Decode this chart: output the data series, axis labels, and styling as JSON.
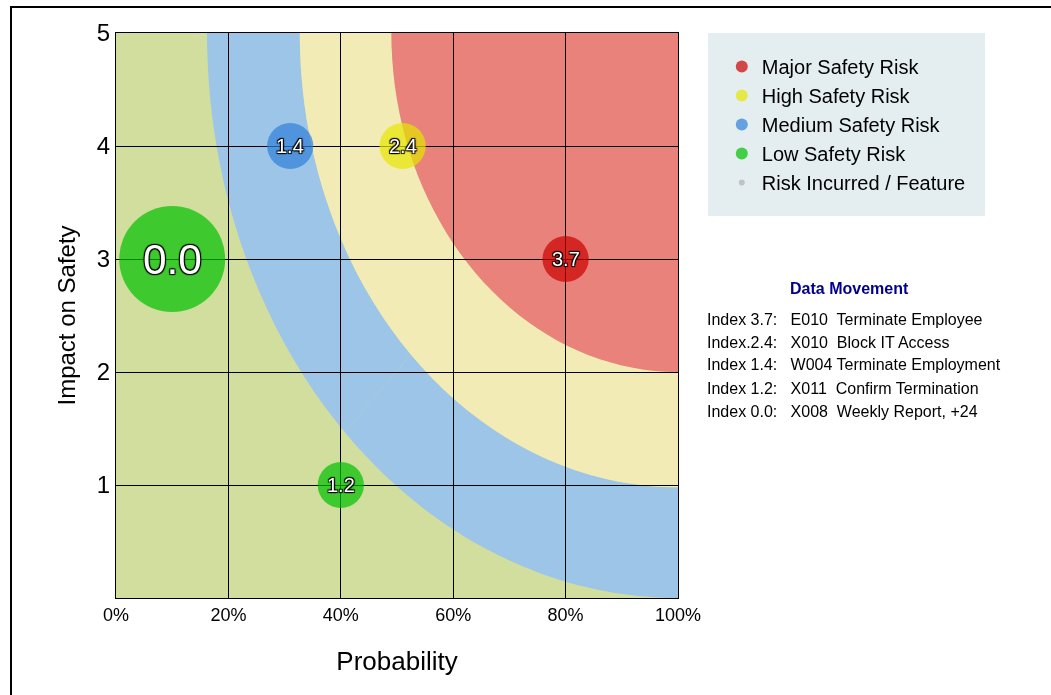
{
  "chart_data": {
    "type": "bubble",
    "xlabel": "Probability",
    "ylabel": "Impact on Safety",
    "xlim": [
      0,
      100
    ],
    "ylim": [
      0,
      5
    ],
    "xticks": [
      {
        "value": 0,
        "label": "0%"
      },
      {
        "value": 20,
        "label": "20%"
      },
      {
        "value": 40,
        "label": "40%"
      },
      {
        "value": 60,
        "label": "60%"
      },
      {
        "value": 80,
        "label": "80%"
      },
      {
        "value": 100,
        "label": "100%"
      }
    ],
    "yticks": [
      {
        "value": 0,
        "label": null
      },
      1,
      2,
      3,
      4,
      5
    ],
    "grid": true,
    "legend": "top right",
    "marker": "circle",
    "series": [
      {
        "name": "Major Safety Risk",
        "color": "#cc0000",
        "x": [
          80
        ],
        "values": [
          3
        ],
        "sizes": [
          0.19
        ]
      },
      {
        "name": "High Safety Risk",
        "color": "#e6e600",
        "x": [
          51
        ],
        "values": [
          4
        ],
        "sizes": [
          0.19
        ]
      },
      {
        "name": "Medium Safety Risk",
        "color": "#2f7fd8",
        "x": [
          31
        ],
        "values": [
          4
        ],
        "sizes": [
          0.19
        ]
      },
      {
        "name": "Low Safety Risk",
        "color": "#00c000",
        "x": [
          10,
          40
        ],
        "values": [
          3,
          1
        ],
        "sizes": [
          1,
          0.19
        ]
      },
      {
        "name": "Risk Incurred / Feature",
        "color": "#b0b0b0"
      }
    ],
    "annotations": [
      {
        "text": "3.7",
        "x": 80,
        "y": 3
      },
      {
        "text": "2.4",
        "x": 51,
        "y": 4
      },
      {
        "text": "1.4",
        "x": 31,
        "y": 4
      },
      {
        "text": "0.0",
        "x": 10,
        "y": 3
      },
      {
        "text": "1.2",
        "x": 40,
        "y": 1
      },
      "Data Movement",
      "Index 3.7:   E010  Terminate Employee",
      "Index.2.4:   X010  Block IT Access",
      "Index 1.4:   W004 Terminate Employment",
      "Index 1.2:   X011  Confirm Termination",
      "Index 0.0:   X008  Weekly Report, +24"
    ]
  }
}
